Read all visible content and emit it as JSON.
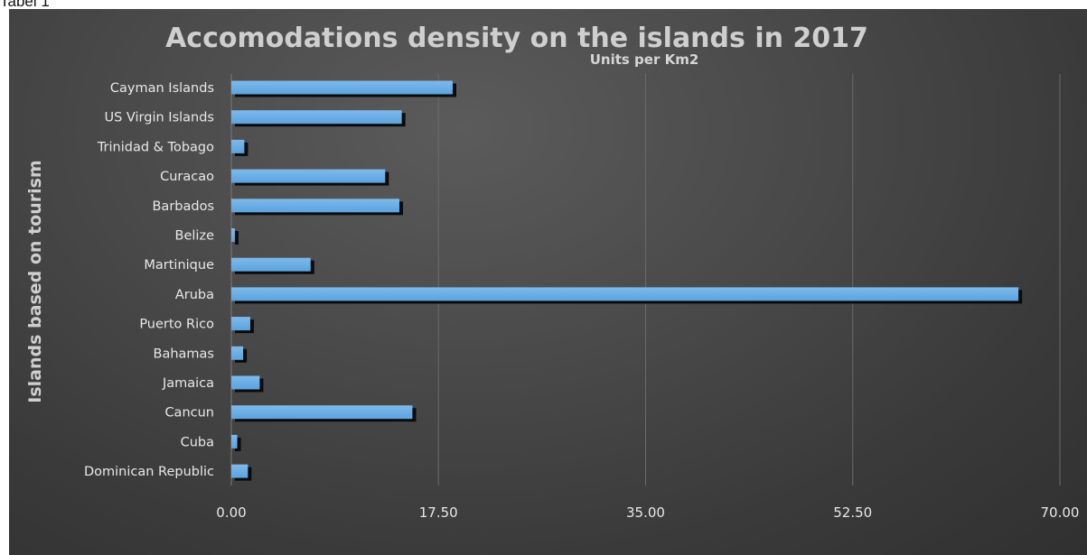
{
  "caption": "Tabel 1",
  "colors": {
    "bar": "#5ba3df",
    "bar_shadow": "#0a0a0a",
    "background": "#454545",
    "gridline": "#6a6a6a",
    "text": "#e8e8e8"
  },
  "chart_data": {
    "type": "bar",
    "orientation": "horizontal",
    "title": "Accomodations density on the islands in 2017",
    "xlabel": "Units per Km2",
    "ylabel": "Islands based on tourism",
    "categories": [
      "Cayman Islands",
      "US Virgin Islands",
      "Trinidad & Tobago",
      "Curacao",
      "Barbados",
      "Belize",
      "Martinique",
      "Aruba",
      "Puerto Rico",
      "Bahamas",
      "Jamaica",
      "Cancun",
      "Cuba",
      "Dominican Republic"
    ],
    "values": [
      18.7,
      14.4,
      1.1,
      13.0,
      14.2,
      0.3,
      6.7,
      66.5,
      1.6,
      1.0,
      2.4,
      15.3,
      0.5,
      1.4
    ],
    "xlim": [
      0,
      70
    ],
    "xticks": [
      "0.00",
      "17.50",
      "35.00",
      "52.50",
      "70.00"
    ],
    "xtick_values": [
      0,
      17.5,
      35,
      52.5,
      70
    ],
    "grid": "vertical",
    "legend": "none"
  }
}
